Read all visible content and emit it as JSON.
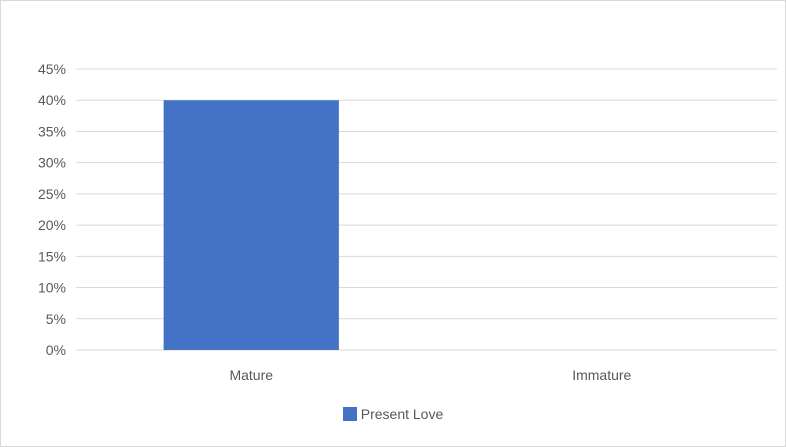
{
  "chart_data": {
    "type": "bar",
    "categories": [
      "Mature",
      "Immature"
    ],
    "series": [
      {
        "name": "Present Love",
        "values": [
          0.4,
          0.0
        ],
        "color": "#4472C4"
      }
    ],
    "ylim": [
      0,
      0.45
    ],
    "y_ticks": [
      "0%",
      "5%",
      "10%",
      "15%",
      "20%",
      "25%",
      "30%",
      "35%",
      "40%",
      "45%"
    ],
    "grid": true,
    "legend_position": "bottom"
  }
}
